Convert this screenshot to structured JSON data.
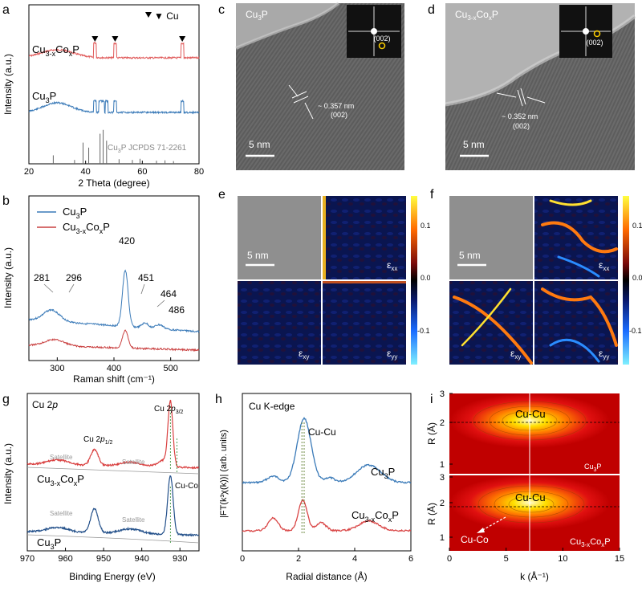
{
  "panels": {
    "a": {
      "letter": "a",
      "legend": "▼ Cu",
      "sample_top": "Cu3-xCoxP",
      "sample_bottom": "Cu3P",
      "reference": "Cu3P JCPDS 71-2261",
      "xlabel": "2 Theta (degree)",
      "ylabel": "Intensity (a.u.)",
      "xticks": [
        "20",
        "40",
        "60",
        "80"
      ]
    },
    "b": {
      "letter": "b",
      "legend": [
        "Cu3P",
        "Cu3-xCoxP"
      ],
      "xlabel": "Raman shift (cm⁻¹)",
      "ylabel": "Intensity (a.u.)",
      "xticks": [
        "300",
        "400",
        "500"
      ],
      "peak_labels": [
        "281",
        "296",
        "420",
        "451",
        "464",
        "486"
      ]
    },
    "c": {
      "letter": "c",
      "label": "Cu3P",
      "spacing": "~ 0.357 nm",
      "plane": "(002)",
      "fft_plane": "(002)",
      "scale": "5 nm"
    },
    "d": {
      "letter": "d",
      "label": "Cu3-xCoxP",
      "spacing": "~ 0.352 nm",
      "plane": "(002)",
      "fft_plane": "(002)",
      "scale": "5 nm"
    },
    "e": {
      "letter": "e",
      "scale": "5 nm",
      "components": [
        "εxx",
        "εxy",
        "εyy"
      ],
      "cbar_ticks": [
        "0.1",
        "0.0",
        "-0.1"
      ]
    },
    "f": {
      "letter": "f",
      "scale": "5 nm",
      "components": [
        "εxx",
        "εxy",
        "εyy"
      ],
      "cbar_ticks": [
        "0.1",
        "0.0",
        "-0.1"
      ]
    },
    "g": {
      "letter": "g",
      "title": "Cu 2p",
      "labels": [
        "Cu 2p3/2",
        "Cu 2p1/2",
        "Satellite",
        "Satellite",
        "Cu-Co",
        "Satellite",
        "Satellite"
      ],
      "sample_top": "Cu3-xCoxP",
      "sample_bottom": "Cu3P",
      "xlabel": "Binding Energy (eV)",
      "ylabel": "Intensity (a.u.)",
      "xticks": [
        "970",
        "960",
        "950",
        "940",
        "930"
      ]
    },
    "h": {
      "letter": "h",
      "title": "Cu K-edge",
      "annotation": "Cu-Cu",
      "sample_top": "Cu3P",
      "sample_bottom": "Cu3-xCoxP",
      "xlabel": "Radial distance (Å)",
      "ylabel": "|FT(k³χ(k))| (arb. units)",
      "xticks": [
        "0",
        "2",
        "4",
        "6"
      ]
    },
    "i": {
      "letter": "i",
      "top_label": "Cu-Cu",
      "top_sample": "Cu3P",
      "bottom_label": "Cu-Cu",
      "bottom_arrow": "Cu-Co",
      "bottom_sample": "Cu3-xCoxP",
      "xlabel": "k (Å⁻¹)",
      "ylabel": "R (Å)",
      "xticks": [
        "0",
        "5",
        "10",
        "15"
      ],
      "yticks": [
        "1",
        "2",
        "3"
      ]
    }
  },
  "chart_data": [
    {
      "type": "line",
      "panel": "a",
      "title": "",
      "xlabel": "2 Theta (degree)",
      "ylabel": "Intensity (a.u.)",
      "xlim": [
        20,
        80
      ],
      "series": [
        {
          "name": "Cu3-xCoxP",
          "color": "#e05a5a"
        },
        {
          "name": "Cu3P",
          "color": "#3a7ab8"
        }
      ],
      "cu_peaks": [
        43.3,
        50.4,
        74.1
      ],
      "reference_lines": [
        {
          "x": 28.6,
          "h": 0.22
        },
        {
          "x": 36.1,
          "h": 0.1
        },
        {
          "x": 39.1,
          "h": 0.55
        },
        {
          "x": 41.1,
          "h": 0.42
        },
        {
          "x": 45.1,
          "h": 0.78
        },
        {
          "x": 46.2,
          "h": 0.88
        },
        {
          "x": 47.4,
          "h": 0.6
        },
        {
          "x": 51.8,
          "h": 0.12
        },
        {
          "x": 56.5,
          "h": 0.1
        },
        {
          "x": 59.2,
          "h": 0.13
        },
        {
          "x": 65.0,
          "h": 0.08
        },
        {
          "x": 68.0,
          "h": 0.09
        },
        {
          "x": 71.0,
          "h": 0.07
        }
      ]
    },
    {
      "type": "line",
      "panel": "b",
      "xlabel": "Raman shift (cm⁻¹)",
      "ylabel": "Intensity (a.u.)",
      "xlim": [
        250,
        550
      ],
      "series": [
        {
          "name": "Cu3P",
          "color": "#3a7ab8"
        },
        {
          "name": "Cu3-xCoxP",
          "color": "#c94040"
        }
      ],
      "peaks": [
        281,
        296,
        420,
        451,
        464,
        486
      ]
    },
    {
      "type": "line",
      "panel": "g",
      "xlabel": "Binding Energy (eV)",
      "ylabel": "Intensity (a.u.)",
      "xlim": [
        970,
        925
      ],
      "series": [
        {
          "name": "Cu3-xCoxP",
          "color": "#d94040"
        },
        {
          "name": "Cu3P",
          "color": "#23508a"
        }
      ],
      "peaks": [
        {
          "name": "Cu 2p3/2",
          "x": 932.5
        },
        {
          "name": "Cu 2p1/2",
          "x": 952.4
        },
        {
          "name": "Cu-Co",
          "x": 930.8
        }
      ]
    },
    {
      "type": "line",
      "panel": "h",
      "xlabel": "Radial distance (Å)",
      "ylabel": "|FT(k3χ(k))| (arb. units)",
      "xlim": [
        0,
        6
      ],
      "series": [
        {
          "name": "Cu3P",
          "color": "#3a7ab8"
        },
        {
          "name": "Cu3-xCoxP",
          "color": "#d94545"
        }
      ],
      "cu_cu_distance": 2.2
    },
    {
      "type": "heatmap",
      "panel": "i",
      "xlabel": "k (Å⁻¹)",
      "ylabel": "R (Å)",
      "xlim": [
        0,
        15
      ],
      "ylim": [
        0.6,
        3.0
      ],
      "maps": [
        {
          "name": "Cu3P",
          "center_k": 7,
          "center_R": 2.25
        },
        {
          "name": "Cu3-xCoxP",
          "center_k": 7,
          "center_R": 2.2
        }
      ]
    }
  ]
}
